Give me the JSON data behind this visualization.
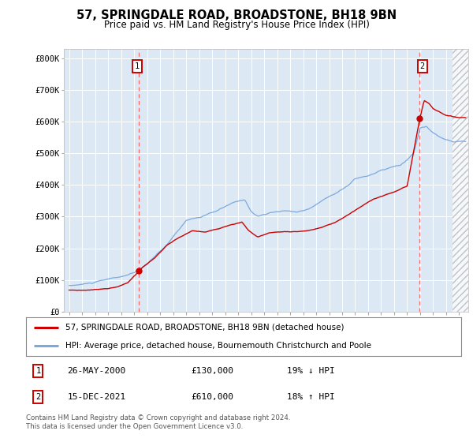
{
  "title": "57, SPRINGDALE ROAD, BROADSTONE, BH18 9BN",
  "subtitle": "Price paid vs. HM Land Registry's House Price Index (HPI)",
  "hpi_label": "HPI: Average price, detached house, Bournemouth Christchurch and Poole",
  "property_label": "57, SPRINGDALE ROAD, BROADSTONE, BH18 9BN (detached house)",
  "annotation1": {
    "label": "1",
    "date": "26-MAY-2000",
    "price": 130000,
    "note": "19% ↓ HPI"
  },
  "annotation2": {
    "label": "2",
    "date": "15-DEC-2021",
    "price": 610000,
    "note": "18% ↑ HPI"
  },
  "property_color": "#cc0000",
  "hpi_color": "#7aaadd",
  "bg_color": "#dde8f5",
  "annotation_line_color": "#ff6666",
  "ylim": [
    0,
    830000
  ],
  "yticks": [
    0,
    100000,
    200000,
    300000,
    400000,
    500000,
    600000,
    700000,
    800000
  ],
  "ytick_labels": [
    "£0",
    "£100K",
    "£200K",
    "£300K",
    "£400K",
    "£500K",
    "£600K",
    "£700K",
    "£800K"
  ],
  "footer_text": "Contains HM Land Registry data © Crown copyright and database right 2024.\nThis data is licensed under the Open Government Licence v3.0.",
  "t1": 2000.38,
  "v1": 130000,
  "t2": 2021.96,
  "v2": 610000,
  "xlim_left": 1994.6,
  "xlim_right": 2025.7
}
